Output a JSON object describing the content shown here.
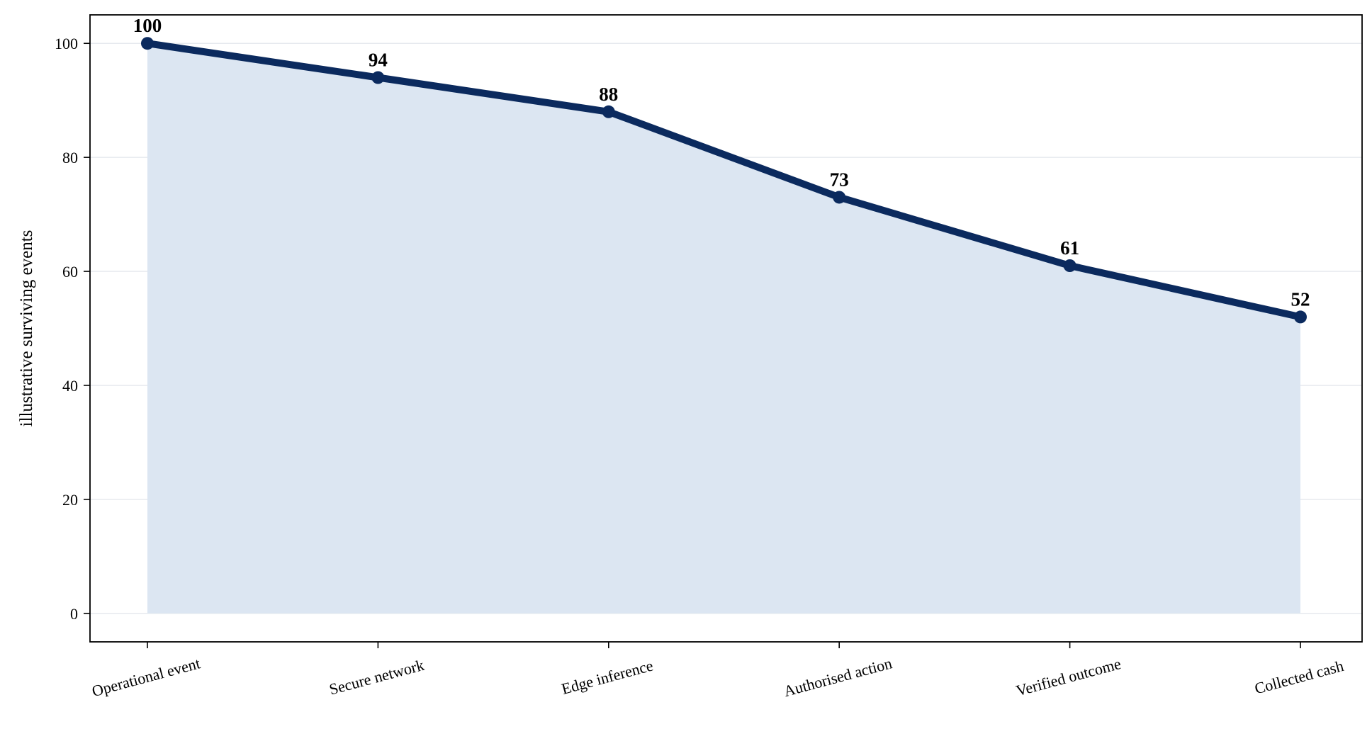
{
  "chart_data": {
    "type": "line",
    "title": "",
    "xlabel": "",
    "ylabel": "illustrative surviving events",
    "categories": [
      "Operational event",
      "Secure network",
      "Edge inference",
      "Authorised action",
      "Verified outcome",
      "Collected cash"
    ],
    "series": [
      {
        "values": [
          100,
          94,
          88,
          73,
          61,
          52
        ]
      }
    ],
    "data_labels": [
      "100",
      "94",
      "88",
      "73",
      "61",
      "52"
    ],
    "ylim": [
      -5,
      105
    ],
    "yticks": [
      0,
      20,
      40,
      60,
      80,
      100
    ],
    "ytick_labels": [
      "0",
      "20",
      "40",
      "60",
      "80",
      "100"
    ],
    "grid": "horizontal",
    "area_fill": true,
    "legend": "none",
    "colors": {
      "line": "#0b2a5e",
      "area": "#dce6f2",
      "grid": "#e6e9ee",
      "axis": "#000000"
    }
  }
}
